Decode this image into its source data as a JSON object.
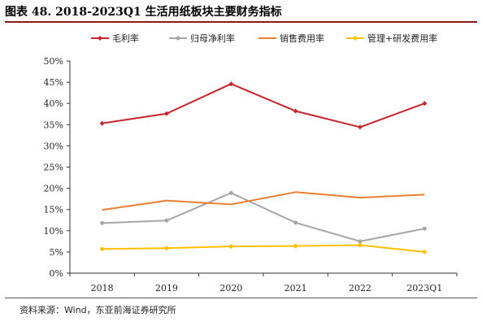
{
  "page": {
    "title": "图表 48. 2018-2023Q1 生活用纸板块主要财务指标",
    "source": "资料来源：Wind，东亚前海证券研究所"
  },
  "chart_data": {
    "type": "line",
    "categories": [
      "2018",
      "2019",
      "2020",
      "2021",
      "2022",
      "2023Q1"
    ],
    "ylim": [
      0,
      50
    ],
    "yticks": [
      "0%",
      "5%",
      "10%",
      "15%",
      "20%",
      "25%",
      "30%",
      "35%",
      "40%",
      "45%",
      "50%"
    ],
    "grid": false,
    "legend_position": "top",
    "series": [
      {
        "name": "毛利率",
        "color": "#c8242b",
        "marker": "diamond",
        "values": [
          35.3,
          37.6,
          44.6,
          38.2,
          34.4,
          40.0
        ]
      },
      {
        "name": "归母净利率",
        "color": "#a6a6a6",
        "marker": "circle",
        "values": [
          11.8,
          12.4,
          18.9,
          11.9,
          7.5,
          10.5
        ]
      },
      {
        "name": "销售费用率",
        "color": "#ed7d31",
        "marker": "none",
        "values": [
          14.9,
          17.1,
          16.2,
          19.1,
          17.8,
          18.5
        ]
      },
      {
        "name": "管理+研发费用率",
        "color": "#ffc000",
        "marker": "circle",
        "values": [
          5.7,
          5.9,
          6.3,
          6.4,
          6.6,
          5.0
        ]
      }
    ]
  }
}
